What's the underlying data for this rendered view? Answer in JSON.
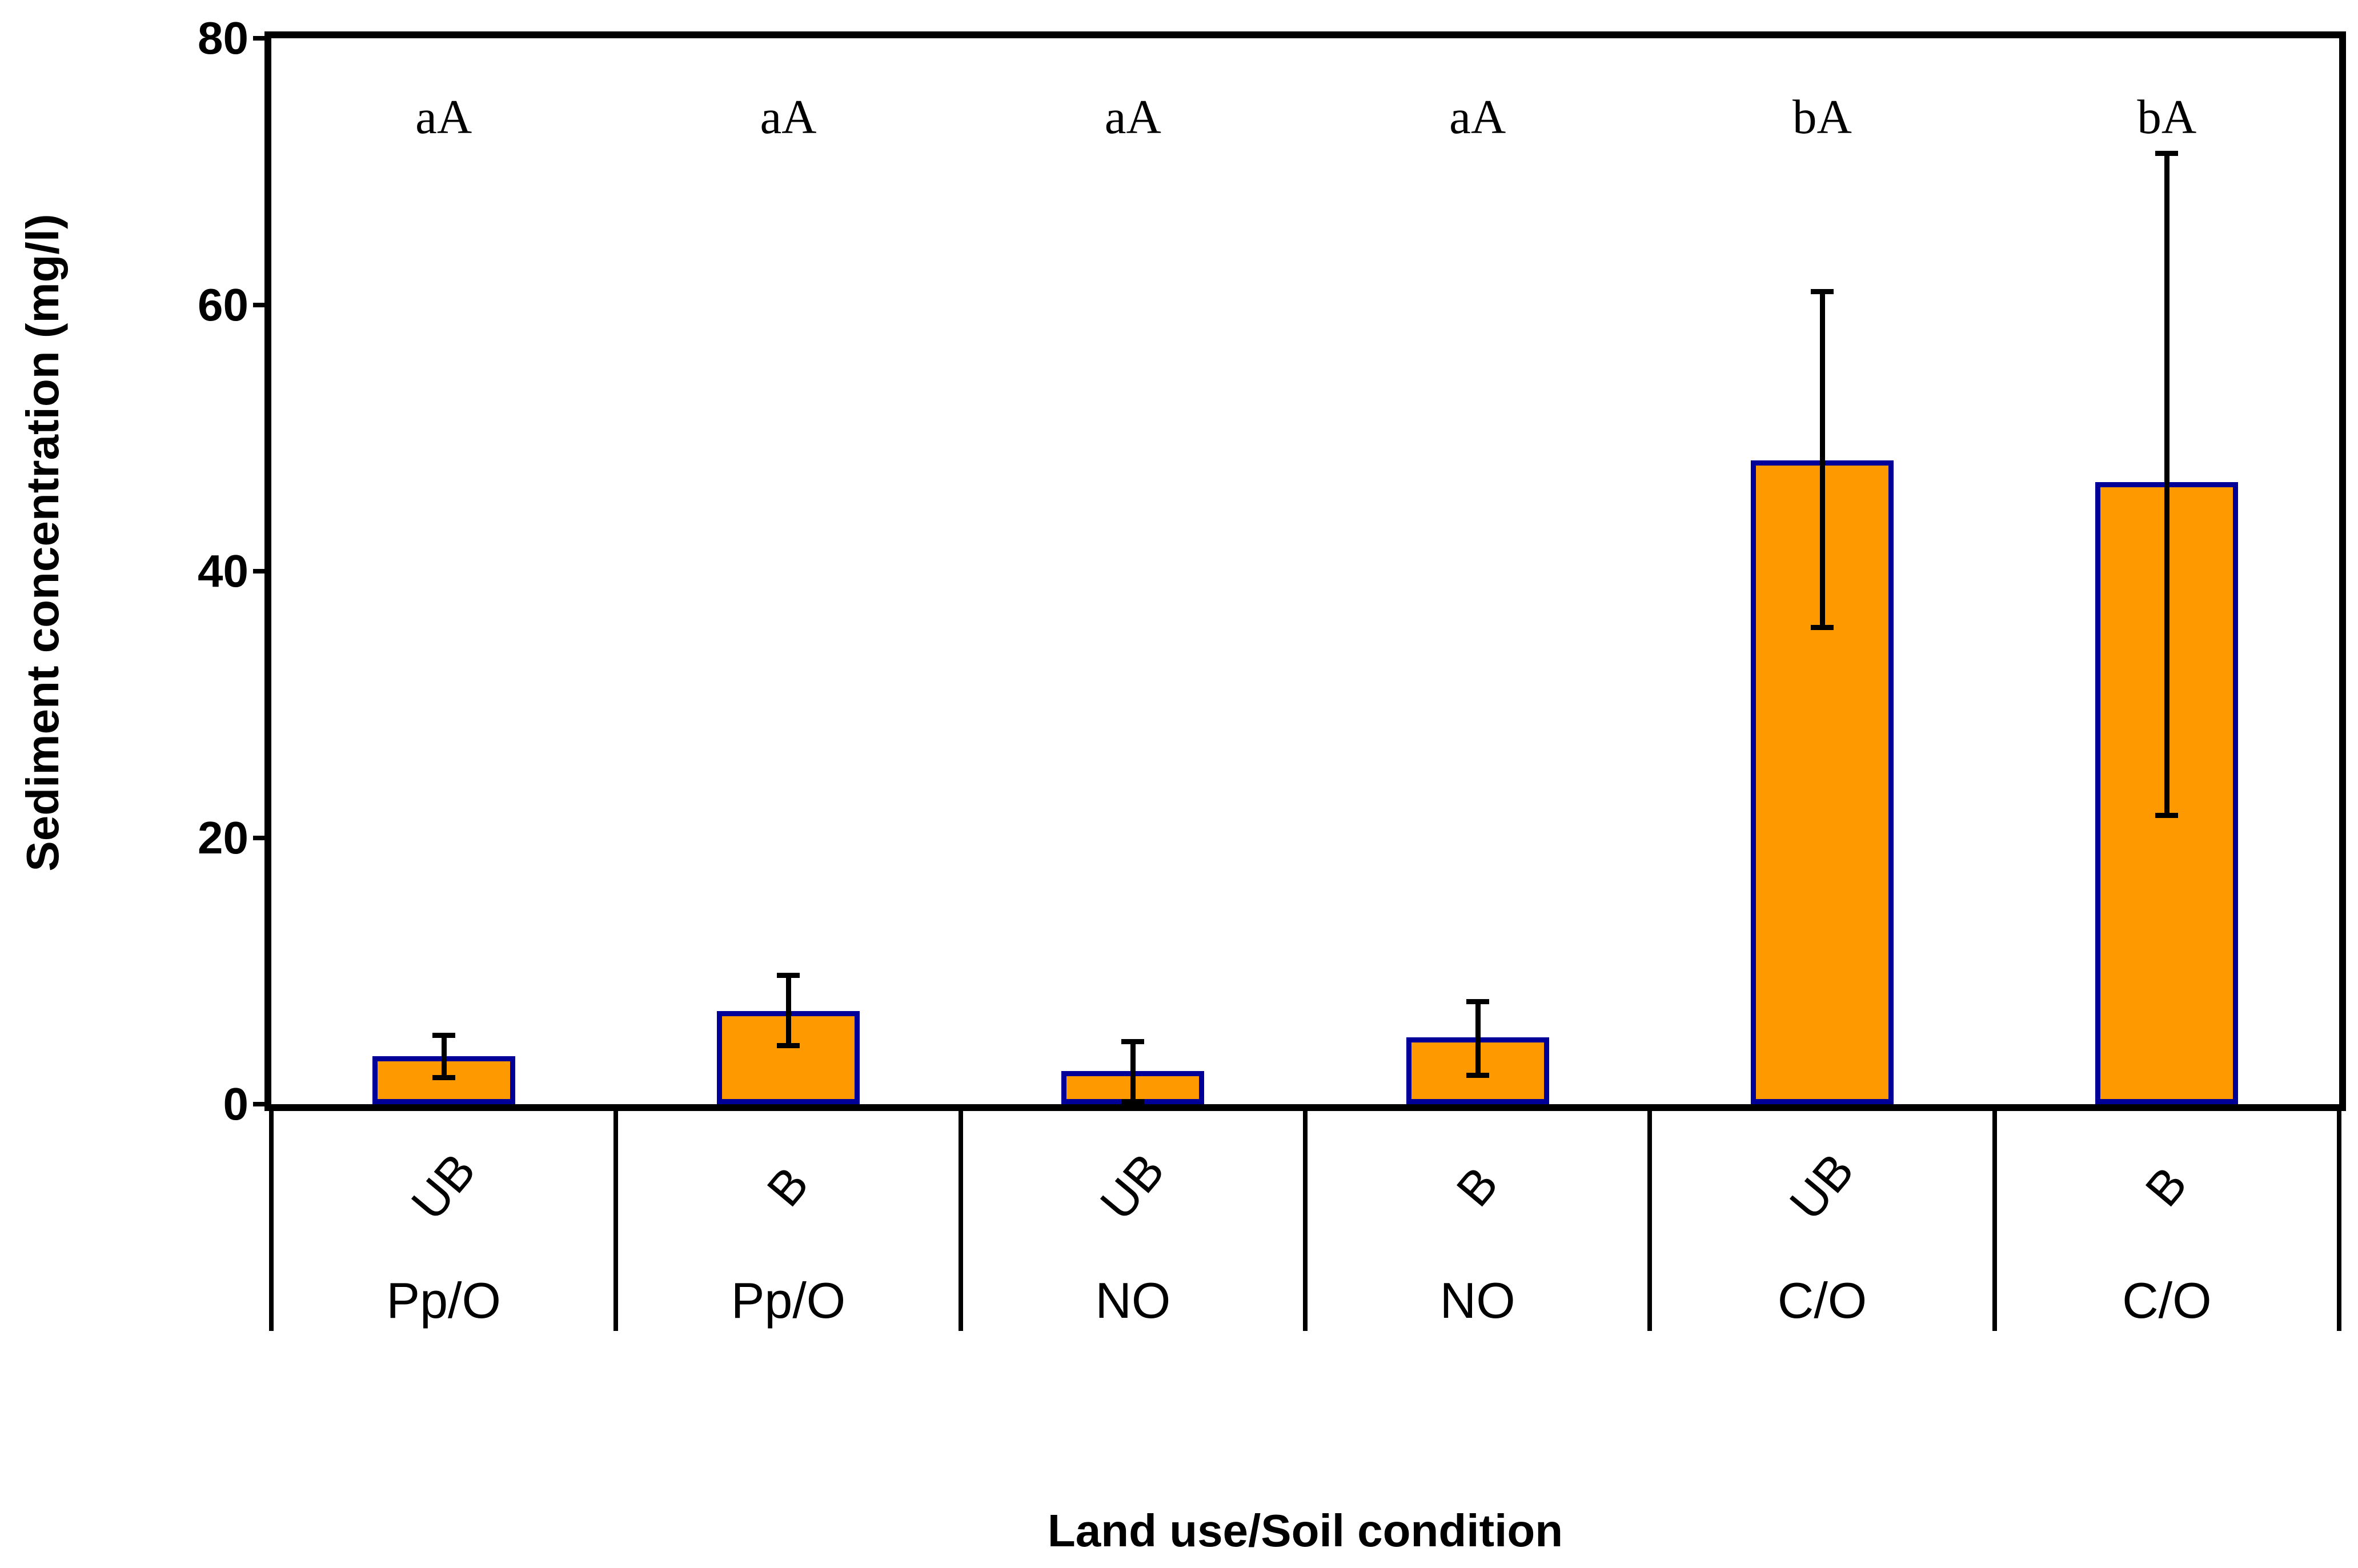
{
  "chart_data": {
    "type": "bar",
    "title": "",
    "xlabel": "Land use/Soil condition",
    "ylabel": "Sediment concentration (mg/l)",
    "ylim": [
      0,
      80
    ],
    "yticks": [
      0,
      20,
      40,
      60,
      80
    ],
    "grid": false,
    "legend": "none",
    "bar_orientation": "vertical",
    "categories_level1": [
      "UB",
      "B",
      "UB",
      "B",
      "UB",
      "B"
    ],
    "categories_level2": [
      "Pp/O",
      "Pp/O",
      "NO",
      "NO",
      "C/O",
      "C/O"
    ],
    "bars": [
      {
        "group": "Pp/O",
        "condition": "UB",
        "value": 3.6,
        "err_low": 2.0,
        "err_high": 5.2,
        "sig_letter": "aA"
      },
      {
        "group": "Pp/O",
        "condition": "B",
        "value": 7.0,
        "err_low": 4.4,
        "err_high": 9.7,
        "sig_letter": "aA"
      },
      {
        "group": "NO",
        "condition": "UB",
        "value": 2.5,
        "err_low": 0.2,
        "err_high": 4.7,
        "sig_letter": "aA"
      },
      {
        "group": "NO",
        "condition": "B",
        "value": 5.0,
        "err_low": 2.2,
        "err_high": 7.7,
        "sig_letter": "aA"
      },
      {
        "group": "C/O",
        "condition": "UB",
        "value": 48.3,
        "err_low": 35.8,
        "err_high": 61.0,
        "sig_letter": "bA"
      },
      {
        "group": "C/O",
        "condition": "B",
        "value": 46.7,
        "err_low": 21.7,
        "err_high": 71.4,
        "sig_letter": "bA"
      }
    ],
    "colors": {
      "bar_fill": "#FF9900",
      "bar_border": "#000099",
      "error_bar": "#000000",
      "axis": "#000000",
      "background": "#FFFFFF"
    }
  }
}
